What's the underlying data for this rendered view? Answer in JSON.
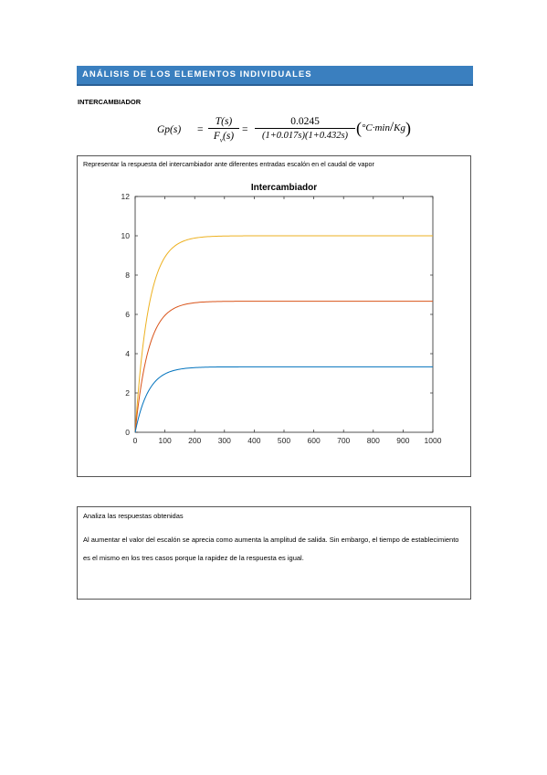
{
  "section": {
    "title": "ANÁLISIS DE LOS ELEMENTOS INDIVIDUALES"
  },
  "subheading": "INTERCAMBIADOR",
  "formula": {
    "lhs": "Gp(s)",
    "eq": "=",
    "num1": "T(s)",
    "den1": "F",
    "den1_sub": "v",
    "den1_tail": "(s)",
    "num2": "0.0245",
    "den2": "(1+0.017s)(1+0.432s)",
    "units_deg": "°C·min",
    "units_den": "Kg"
  },
  "box1": {
    "caption": "Representar la respuesta del intercambiador ante diferentes entradas escalón en el caudal de vapor"
  },
  "chart_data": {
    "type": "line",
    "title": "Intercambiador",
    "xlabel": "",
    "ylabel": "",
    "xlim": [
      0,
      1000
    ],
    "ylim": [
      0,
      12
    ],
    "xticks": [
      "0",
      "100",
      "200",
      "300",
      "400",
      "500",
      "600",
      "700",
      "800",
      "900",
      "1000"
    ],
    "yticks": [
      "0",
      "2",
      "4",
      "6",
      "8",
      "10",
      "12"
    ],
    "grid": false,
    "series": [
      {
        "color": "#edb120",
        "final_value": 10,
        "time_constant": 45
      },
      {
        "color": "#d95319",
        "final_value": 6.67,
        "time_constant": 45
      },
      {
        "color": "#0072bd",
        "final_value": 3.33,
        "time_constant": 45
      }
    ]
  },
  "box2": {
    "title": "Analiza las respuestas obtenidas",
    "text": "Al aumentar el valor del escalón se aprecia como aumenta la amplitud de salida. Sin embargo, el tiempo de establecimiento es el mismo en los tres casos porque la rapidez de la respuesta es igual."
  }
}
